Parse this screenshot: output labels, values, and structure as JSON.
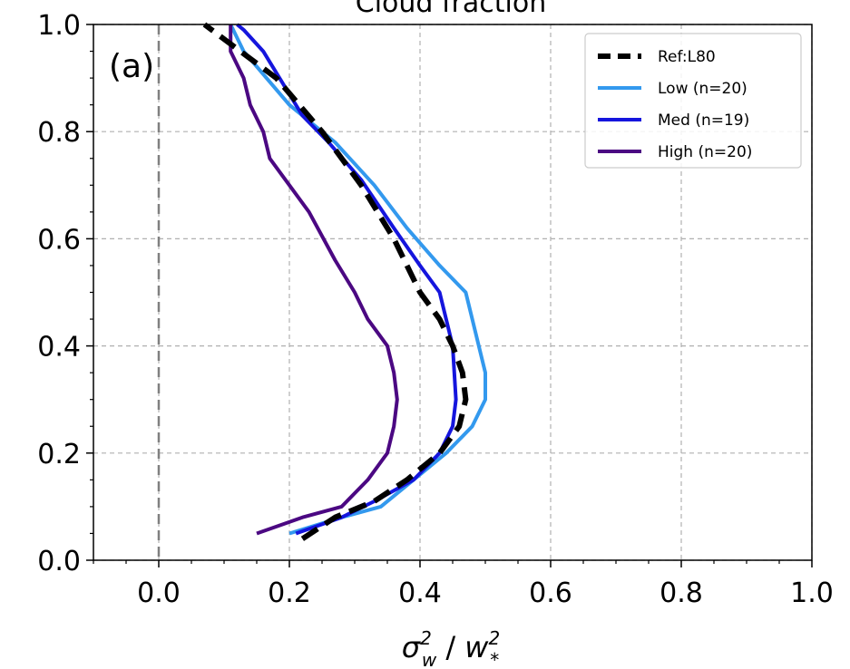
{
  "chart_data": {
    "type": "line",
    "title": "Cloud fraction",
    "panel_label": "(a)",
    "xlabel": "σ",
    "xlabel_parts": {
      "sym1": "σ",
      "sup1": "2",
      "sub1": "w",
      "sep": " / ",
      "sym2": "w",
      "sup2": "2",
      "sub2": "*"
    },
    "ylabel": "",
    "xlim": [
      -0.1,
      1.0
    ],
    "ylim": [
      0.0,
      1.0
    ],
    "xticks": [
      "0.0",
      "0.2",
      "0.4",
      "0.6",
      "0.8",
      "1.0"
    ],
    "xtick_values": [
      0.0,
      0.2,
      0.4,
      0.6,
      0.8,
      1.0
    ],
    "yticks": [
      "0.0",
      "0.2",
      "0.4",
      "0.6",
      "0.8",
      "1.0"
    ],
    "ytick_values": [
      0.0,
      0.2,
      0.4,
      0.6,
      0.8,
      1.0
    ],
    "grid": true,
    "legend_position": "top-right",
    "zero_line_x": 0.0,
    "series": [
      {
        "name": "Ref:L80",
        "color": "#000000",
        "style": "dashed",
        "points": [
          [
            0.22,
            0.04
          ],
          [
            0.27,
            0.08
          ],
          [
            0.33,
            0.11
          ],
          [
            0.38,
            0.15
          ],
          [
            0.43,
            0.2
          ],
          [
            0.46,
            0.25
          ],
          [
            0.47,
            0.3
          ],
          [
            0.465,
            0.35
          ],
          [
            0.45,
            0.4
          ],
          [
            0.43,
            0.45
          ],
          [
            0.4,
            0.5
          ],
          [
            0.36,
            0.6
          ],
          [
            0.31,
            0.7
          ],
          [
            0.25,
            0.8
          ],
          [
            0.18,
            0.9
          ],
          [
            0.07,
            1.0
          ]
        ]
      },
      {
        "name": "Low (n=20)",
        "color": "#3399ee",
        "style": "solid",
        "points": [
          [
            0.2,
            0.05
          ],
          [
            0.28,
            0.08
          ],
          [
            0.34,
            0.1
          ],
          [
            0.39,
            0.15
          ],
          [
            0.44,
            0.2
          ],
          [
            0.48,
            0.25
          ],
          [
            0.5,
            0.3
          ],
          [
            0.5,
            0.35
          ],
          [
            0.49,
            0.4
          ],
          [
            0.47,
            0.5
          ],
          [
            0.43,
            0.55
          ],
          [
            0.38,
            0.62
          ],
          [
            0.33,
            0.7
          ],
          [
            0.27,
            0.78
          ],
          [
            0.2,
            0.85
          ],
          [
            0.13,
            0.95
          ],
          [
            0.11,
            1.0
          ]
        ]
      },
      {
        "name": "Med (n=19)",
        "color": "#1515dd",
        "style": "solid",
        "points": [
          [
            0.21,
            0.05
          ],
          [
            0.28,
            0.08
          ],
          [
            0.33,
            0.11
          ],
          [
            0.39,
            0.15
          ],
          [
            0.43,
            0.2
          ],
          [
            0.45,
            0.25
          ],
          [
            0.455,
            0.3
          ],
          [
            0.45,
            0.4
          ],
          [
            0.43,
            0.5
          ],
          [
            0.4,
            0.55
          ],
          [
            0.36,
            0.62
          ],
          [
            0.31,
            0.71
          ],
          [
            0.26,
            0.78
          ],
          [
            0.22,
            0.83
          ],
          [
            0.17,
            0.93
          ],
          [
            0.16,
            0.95
          ],
          [
            0.13,
            0.99
          ],
          [
            0.12,
            1.0
          ]
        ]
      },
      {
        "name": "High (n=20)",
        "color": "#4b0882",
        "style": "solid",
        "points": [
          [
            0.15,
            0.05
          ],
          [
            0.22,
            0.08
          ],
          [
            0.28,
            0.1
          ],
          [
            0.32,
            0.15
          ],
          [
            0.35,
            0.2
          ],
          [
            0.36,
            0.25
          ],
          [
            0.365,
            0.3
          ],
          [
            0.36,
            0.35
          ],
          [
            0.35,
            0.4
          ],
          [
            0.32,
            0.45
          ],
          [
            0.3,
            0.5
          ],
          [
            0.27,
            0.56
          ],
          [
            0.23,
            0.65
          ],
          [
            0.2,
            0.7
          ],
          [
            0.17,
            0.75
          ],
          [
            0.16,
            0.8
          ],
          [
            0.14,
            0.85
          ],
          [
            0.13,
            0.9
          ],
          [
            0.11,
            0.95
          ],
          [
            0.11,
            1.0
          ]
        ]
      }
    ]
  }
}
